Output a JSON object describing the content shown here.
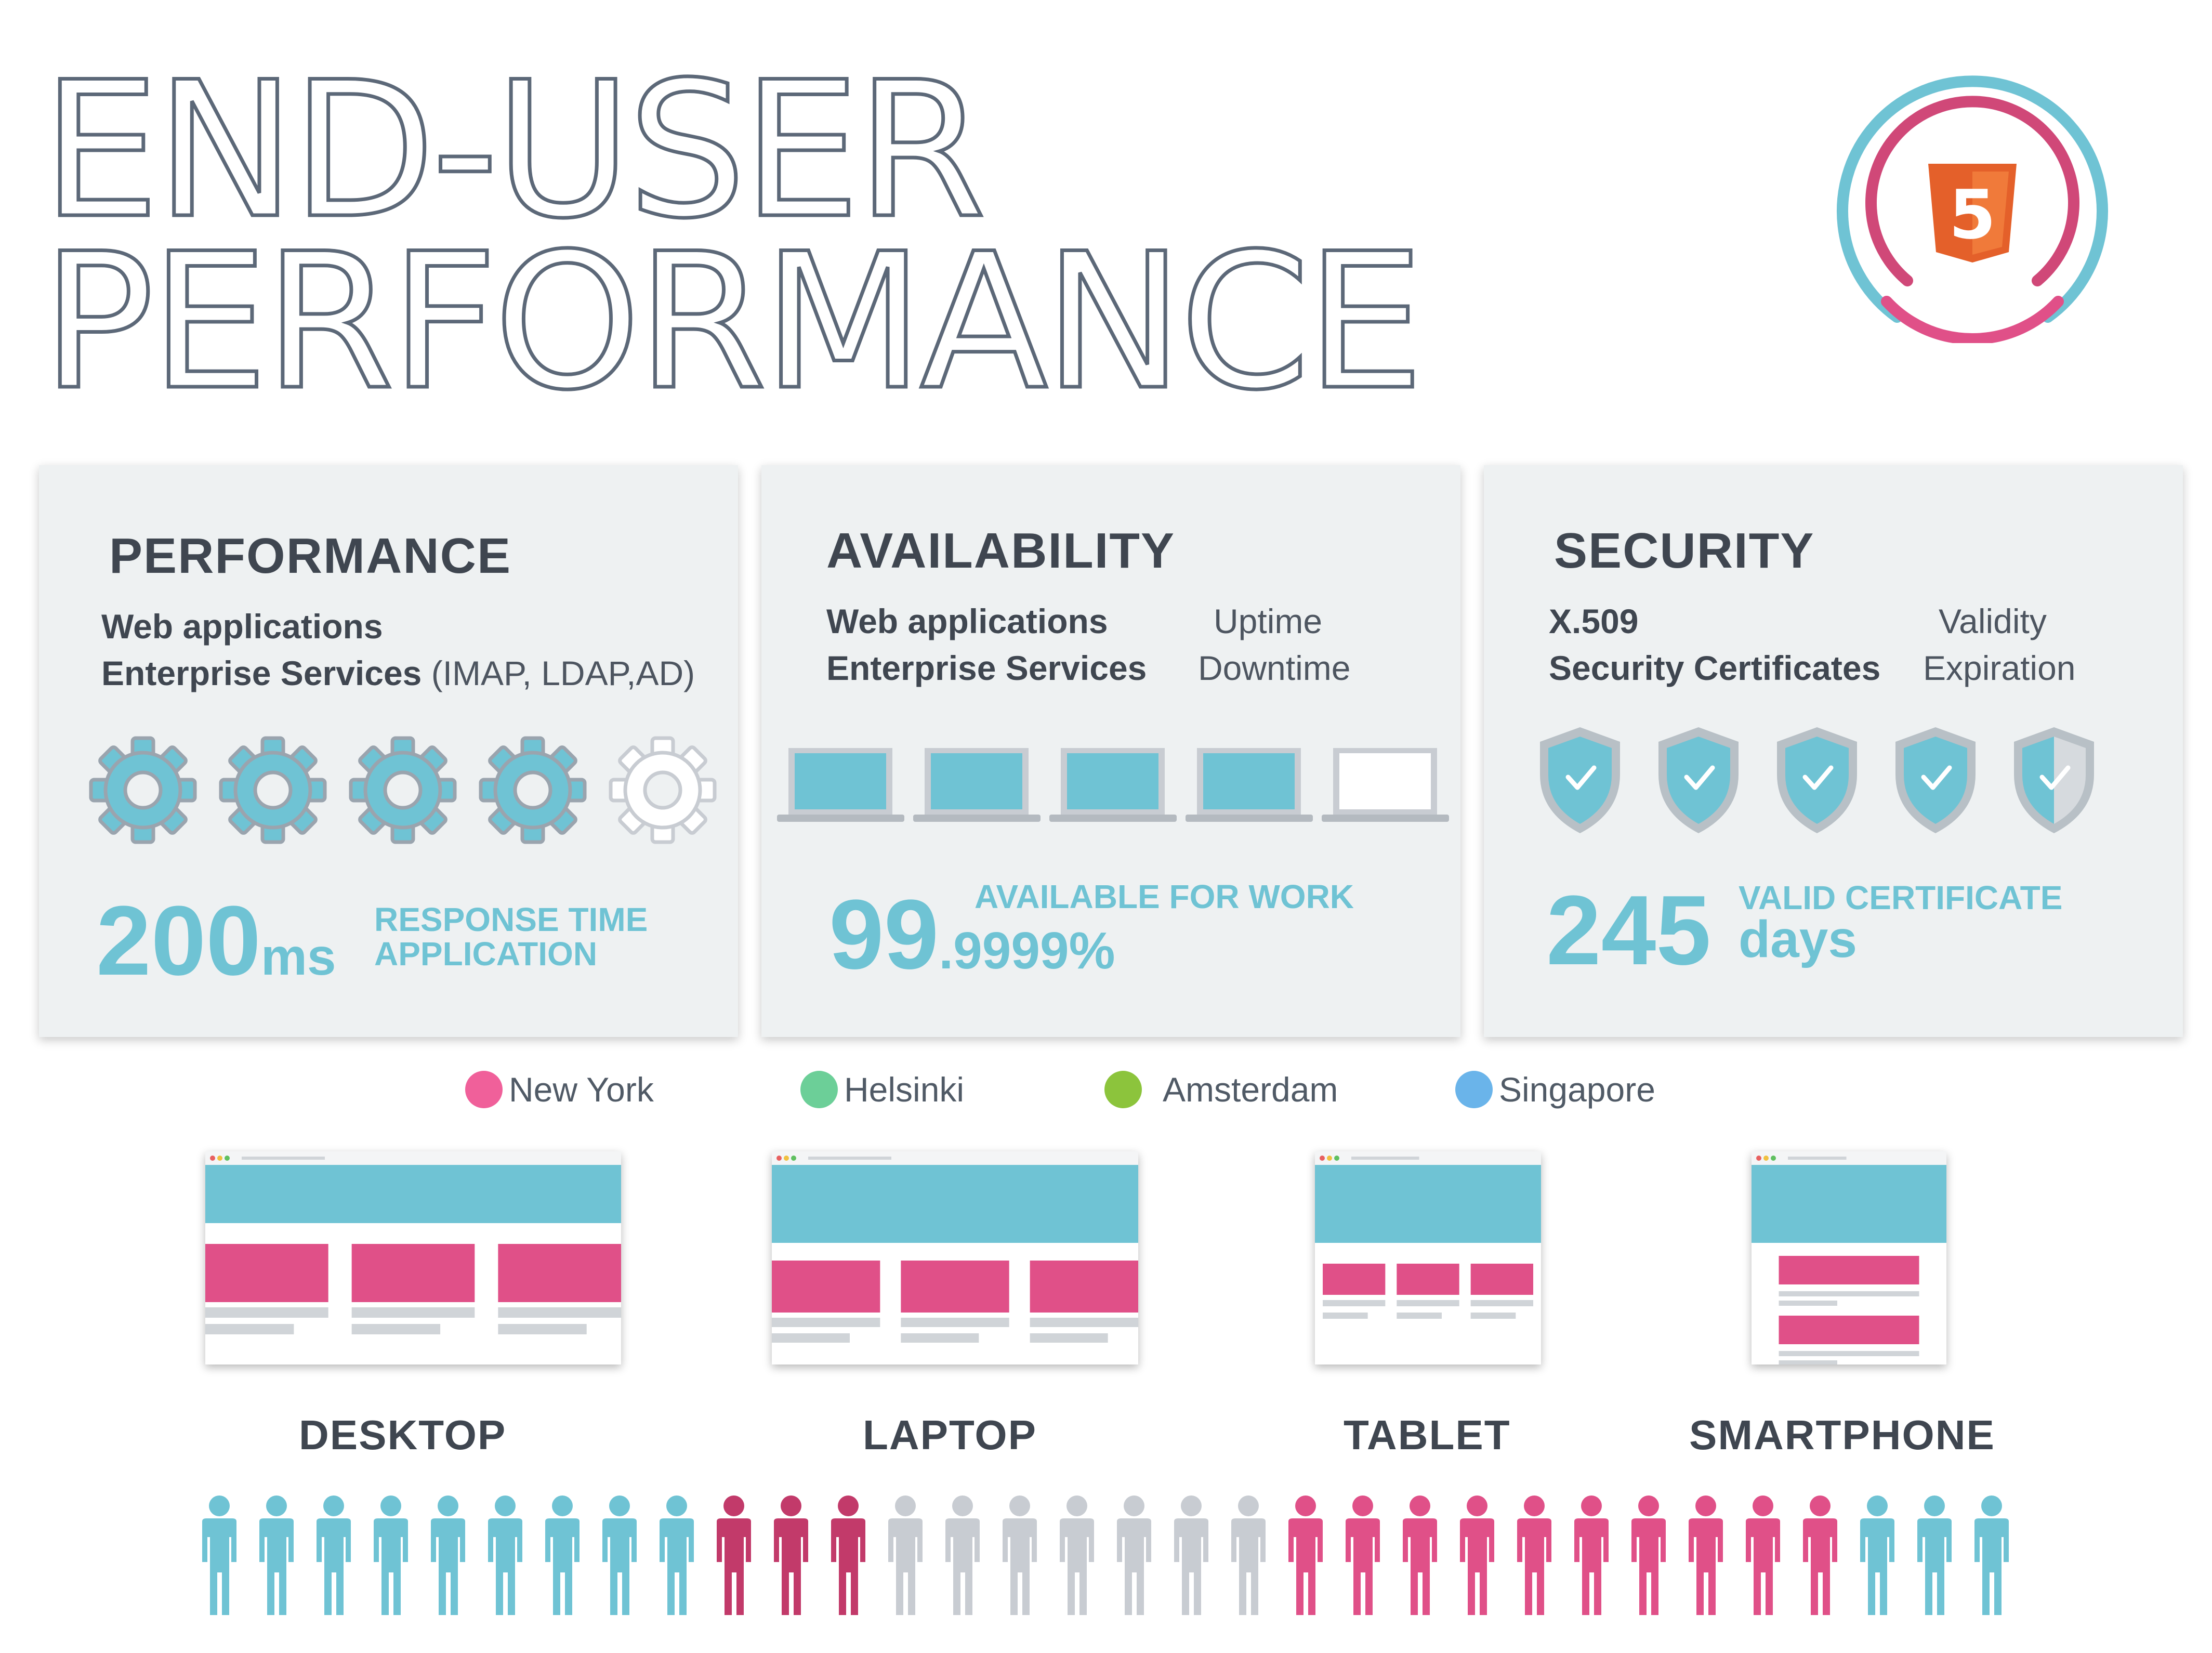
{
  "header": {
    "title_line1": "END-USER",
    "title_line2": "PERFORMANCE",
    "logo_icon": "html5-rings-icon",
    "logo_glyph": "5"
  },
  "colors": {
    "teal": "#6fc3d4",
    "pink": "#e05088",
    "dark_pink": "#c23a6a",
    "gray": "#c8ccd2",
    "green": "#6ccf98",
    "lime": "#8cc43c",
    "blue": "#6ab4ea",
    "html5_orange": "#e4602a"
  },
  "cards": {
    "performance": {
      "title": "PERFORMANCE",
      "line1": "Web applications",
      "line2_bold": "Enterprise Services",
      "line2_rest": " (IMAP, LDAP,AD)",
      "icon": "gear-icon",
      "filled_count": 4,
      "total_count": 5,
      "value": "200",
      "unit": "ms",
      "label1": "RESPONSE TIME",
      "label2": "APPLICATION"
    },
    "availability": {
      "title": "AVAILABILITY",
      "line1": "Web applications",
      "line1_right": "Uptime",
      "line2": "Enterprise Services",
      "line2_right": "Downtime",
      "icon": "laptop-icon",
      "filled_count": 4,
      "total_count": 5,
      "value": "99",
      "fraction": ".9999%",
      "label": "AVAILABLE FOR WORK"
    },
    "security": {
      "title": "SECURITY",
      "line1": "X.509",
      "line1_right": "Validity",
      "line2": "Security Certificates",
      "line2_right": "Expiration",
      "icon": "shield-check-icon",
      "filled_count": 4,
      "total_count": 5,
      "value": "245",
      "unit": "days",
      "label": "VALID CERTIFICATE"
    }
  },
  "legend": [
    {
      "label": "New York",
      "color": "#f0609a"
    },
    {
      "label": "Helsinki",
      "color": "#6ccf98"
    },
    {
      "label": "Amsterdam",
      "color": "#8cc43c"
    },
    {
      "label": "Singapore",
      "color": "#6ab4ea"
    }
  ],
  "devices": [
    {
      "label": "DESKTOP",
      "icon": "desktop-browser-icon"
    },
    {
      "label": "LAPTOP",
      "icon": "laptop-browser-icon"
    },
    {
      "label": "TABLET",
      "icon": "tablet-browser-icon"
    },
    {
      "label": "SMARTPHONE",
      "icon": "smartphone-browser-icon"
    }
  ],
  "people": {
    "icon": "person-icon",
    "groups": [
      {
        "color": "#6fc3d4",
        "count": 9
      },
      {
        "color": "#c23a6a",
        "count": 3
      },
      {
        "color": "#c8ccd2",
        "count": 7
      },
      {
        "color": "#e05088",
        "count": 10
      },
      {
        "color": "#6fc3d4",
        "count": 3
      }
    ]
  }
}
